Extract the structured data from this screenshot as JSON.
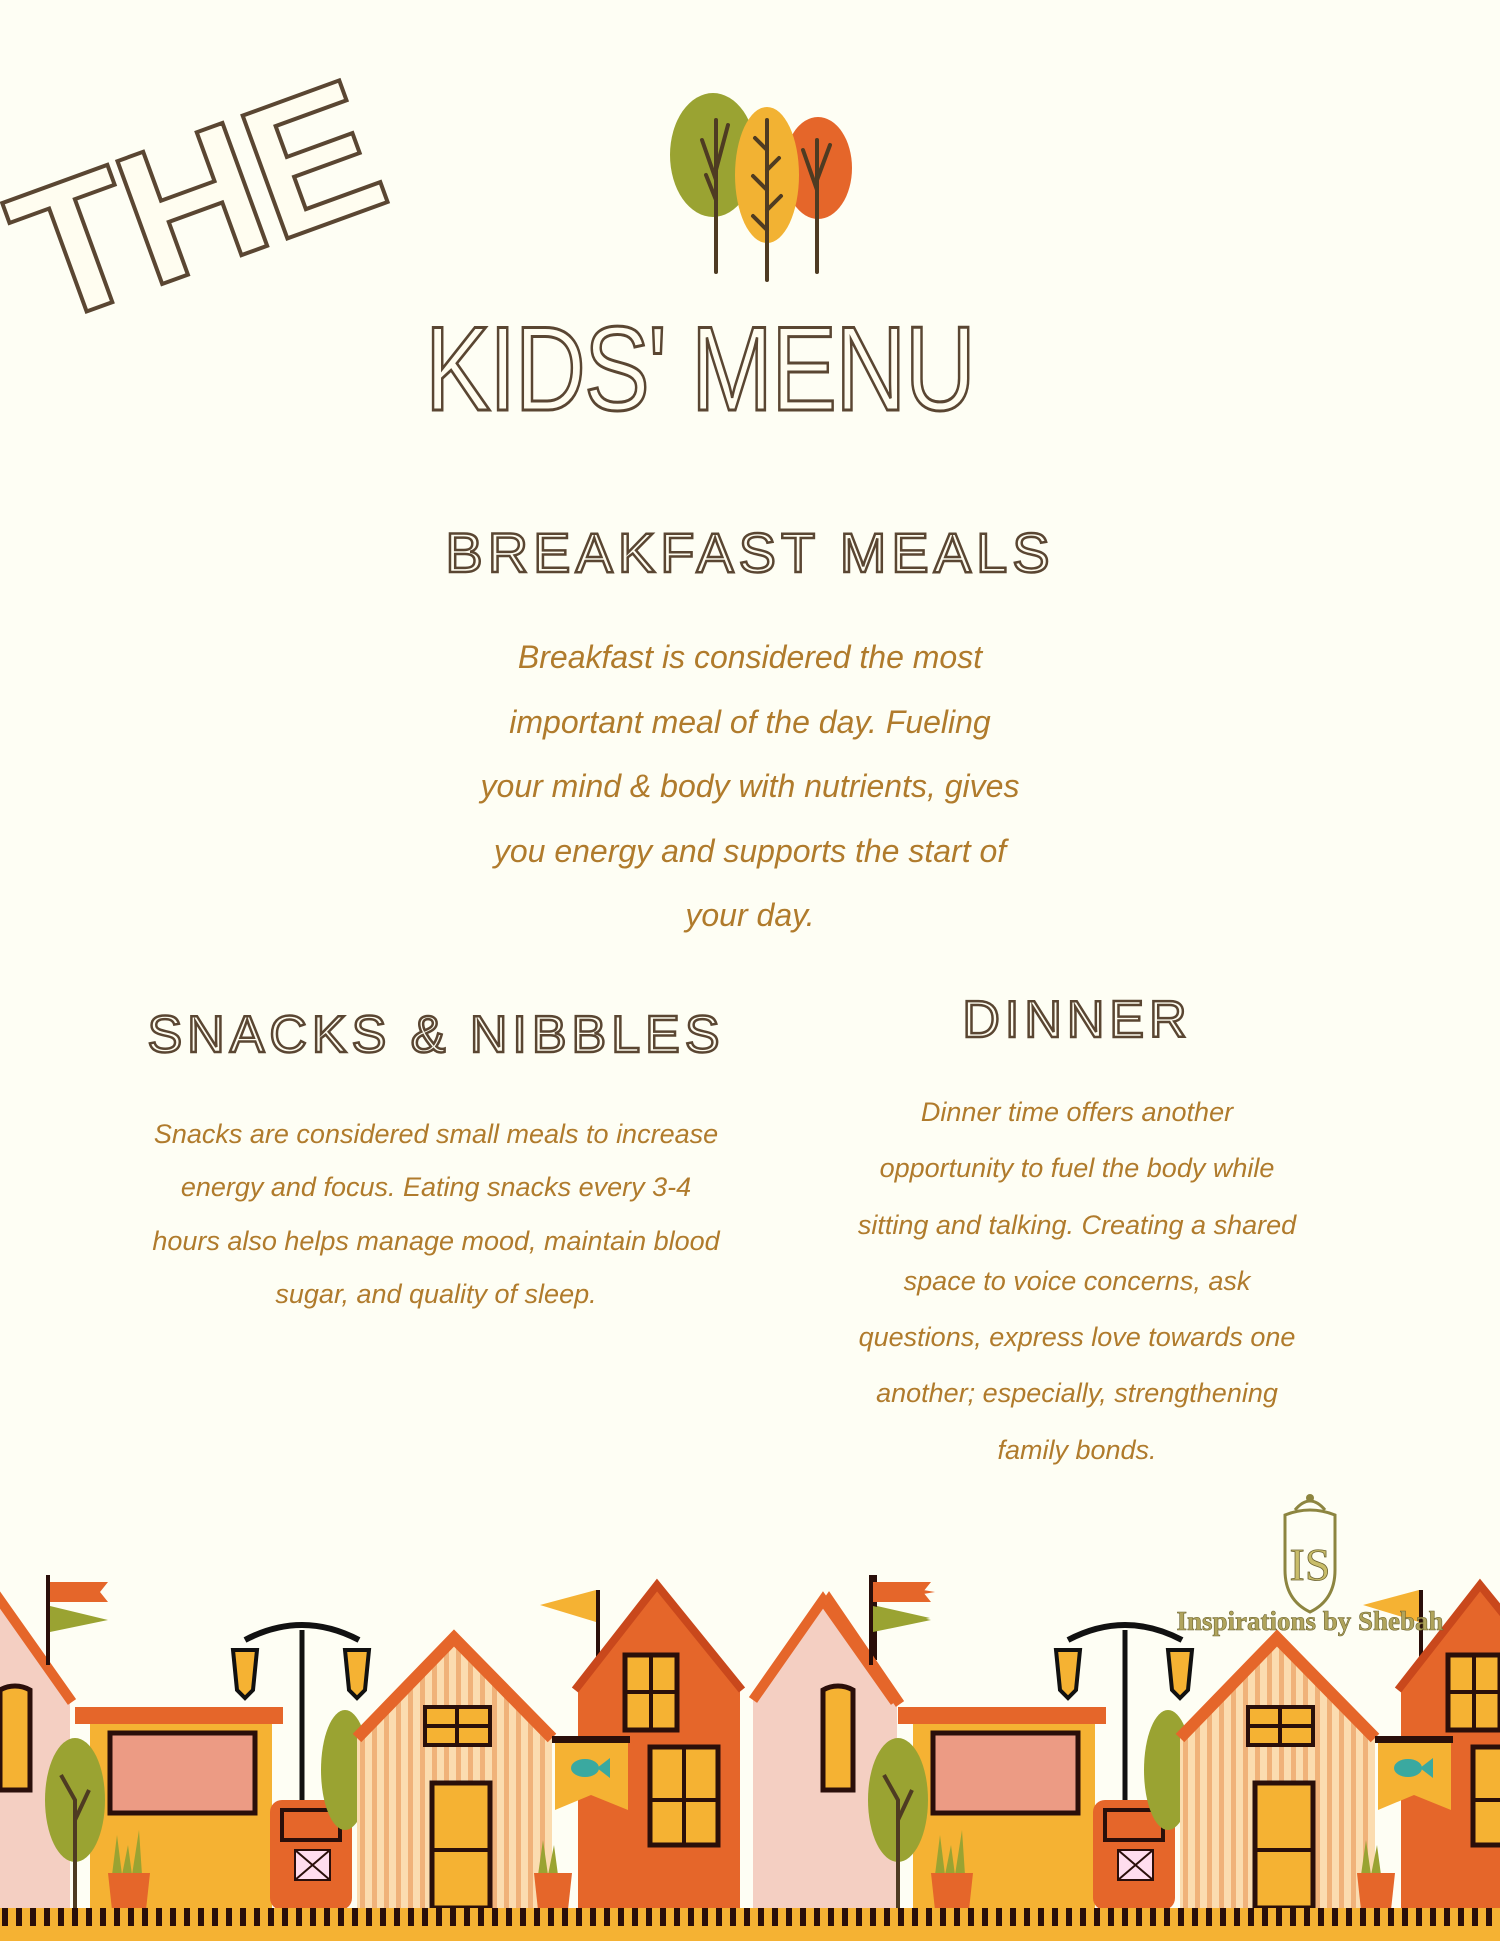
{
  "title": {
    "line1": "THE",
    "line2": "KIDS' MENU"
  },
  "breakfast": {
    "heading": "BREAKFAST MEALS",
    "lines": [
      "Breakfast is considered the most",
      "important meal of the day. Fueling",
      "your mind & body with nutrients, gives",
      "you energy and supports the start of",
      "your day."
    ]
  },
  "snacks": {
    "heading": "SNACKS & NIBBLES",
    "lines": [
      "Snacks are considered small meals to increase",
      "energy and focus. Eating snacks every 3-4",
      "hours also helps manage mood, maintain blood",
      "sugar, and quality of sleep."
    ]
  },
  "dinner": {
    "heading": "DINNER",
    "lines": [
      "Dinner time offers another",
      "opportunity to fuel the body while",
      "sitting and talking. Creating a shared",
      "space to voice concerns, ask",
      "questions, express love towards one",
      "another; especially, strengthening",
      "family bonds."
    ]
  },
  "logo": {
    "monogram": "IS",
    "text": "Inspirations by Shebah"
  },
  "colors": {
    "text_brown": "#5a4632",
    "body_gold": "#b07b2c",
    "orange": "#e5662a",
    "yellow": "#f5b233",
    "olive": "#9aa332",
    "pink": "#f4cfc2",
    "background": "#fefef4"
  }
}
